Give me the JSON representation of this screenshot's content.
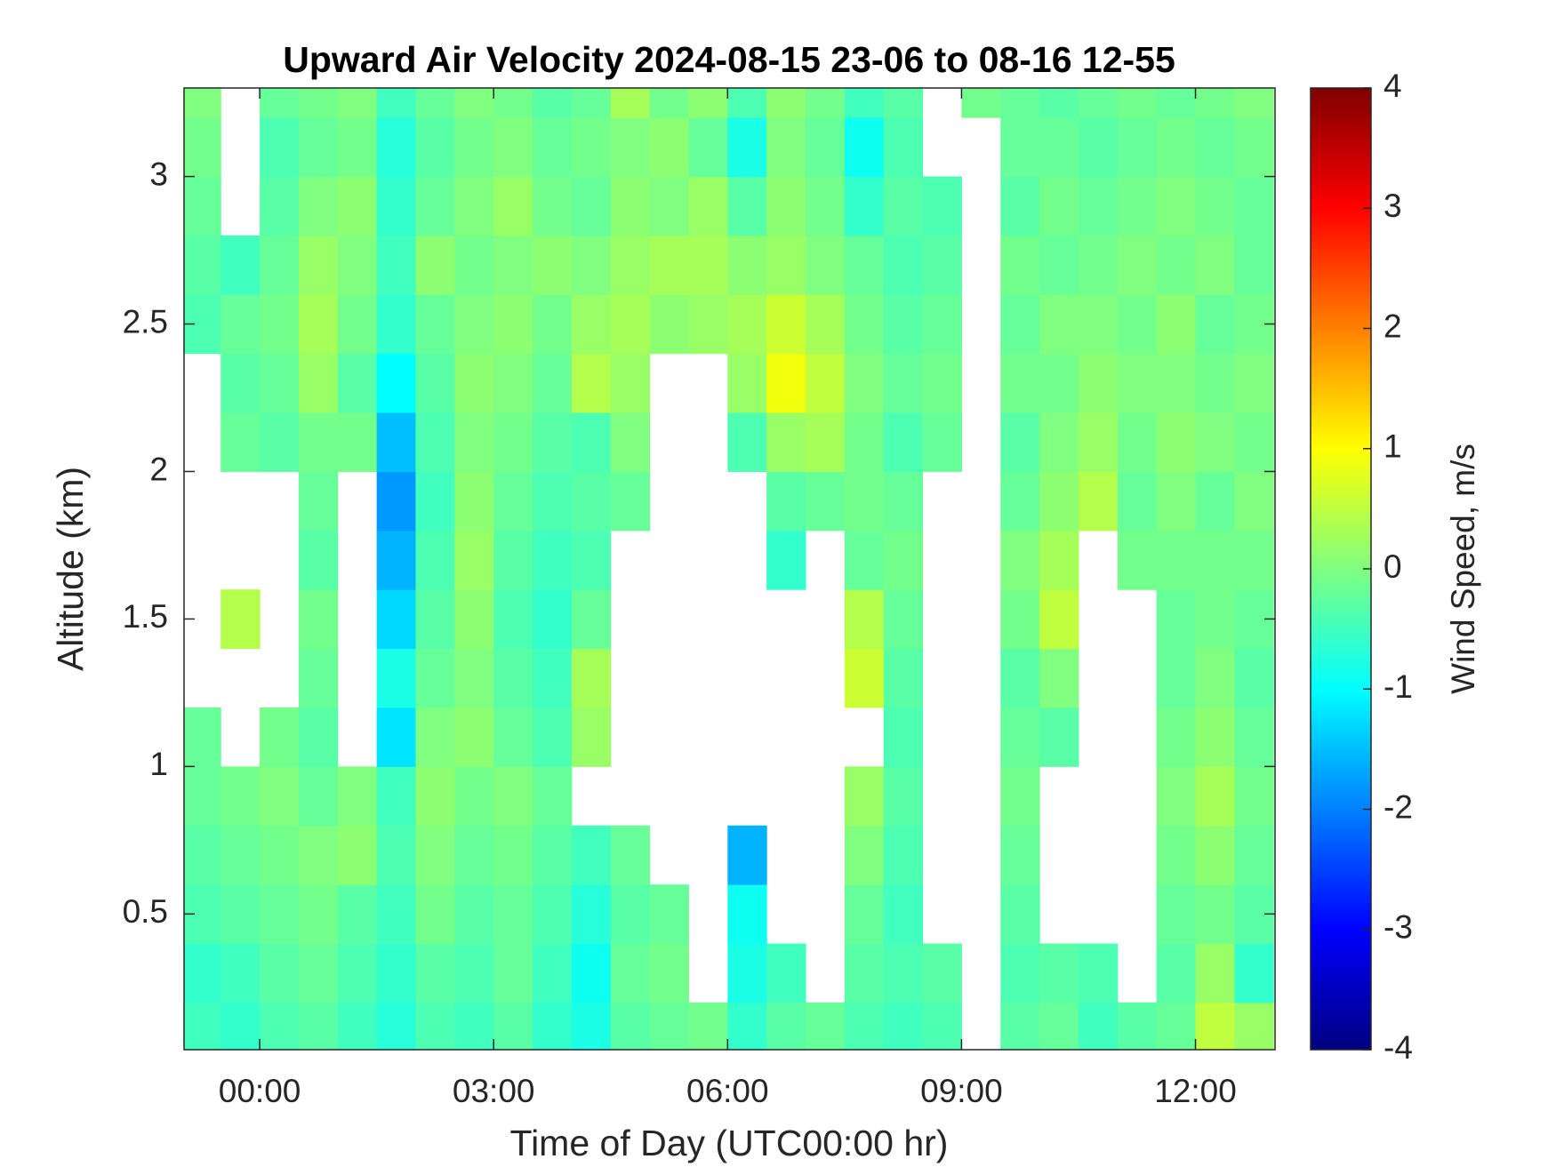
{
  "chart_data": {
    "type": "heatmap",
    "title": "Upward Air Velocity 2024-08-15 23-06 to 08-16 12-55",
    "xlabel": "Time of Day (UTC00:00 hr)",
    "ylabel": "Altitude (km)",
    "colorbar_label": "Wind Speed, m/s",
    "colormap": "jet",
    "xlim": [
      -0.97,
      13.02
    ],
    "ylim": [
      0.04,
      3.3
    ],
    "clim": [
      -4,
      4
    ],
    "xticks": [
      {
        "value": 0,
        "label": "00:00"
      },
      {
        "value": 3,
        "label": "03:00"
      },
      {
        "value": 6,
        "label": "06:00"
      },
      {
        "value": 9,
        "label": "09:00"
      },
      {
        "value": 12,
        "label": "12:00"
      }
    ],
    "yticks": [
      0.5,
      1,
      1.5,
      2,
      2.5,
      3
    ],
    "cticks": [
      -4,
      -3,
      -2,
      -1,
      0,
      1,
      2,
      3,
      4
    ],
    "x": [
      -0.75,
      -0.25,
      0.25,
      0.75,
      1.25,
      1.75,
      2.25,
      2.75,
      3.25,
      3.75,
      4.25,
      4.75,
      5.25,
      5.75,
      6.25,
      6.75,
      7.25,
      7.75,
      8.25,
      8.75,
      9.25,
      9.75,
      10.25,
      10.75,
      11.25,
      11.75,
      12.25,
      12.75
    ],
    "y": [
      0.1,
      0.3,
      0.5,
      0.7,
      0.9,
      1.1,
      1.3,
      1.5,
      1.7,
      1.9,
      2.1,
      2.3,
      2.5,
      2.7,
      2.9,
      3.1,
      3.3
    ],
    "z": [
      [
        -0.5,
        -0.6,
        -0.4,
        -0.3,
        -0.5,
        -0.7,
        -0.4,
        -0.5,
        -0.3,
        -0.6,
        -0.8,
        -0.3,
        -0.2,
        -0.1,
        -0.6,
        -0.3,
        -0.2,
        -0.4,
        -0.5,
        -0.4,
        null,
        -0.3,
        -0.2,
        -0.5,
        -0.3,
        -0.2,
        0.5,
        0.2
      ],
      [
        -0.6,
        -0.5,
        -0.3,
        -0.2,
        -0.4,
        -0.6,
        -0.3,
        -0.4,
        -0.2,
        -0.5,
        -0.9,
        -0.2,
        -0.1,
        null,
        -0.8,
        -0.5,
        null,
        -0.3,
        -0.4,
        -0.3,
        null,
        -0.4,
        -0.3,
        -0.4,
        null,
        -0.3,
        0.2,
        -0.6
      ],
      [
        -0.4,
        -0.3,
        -0.2,
        -0.1,
        -0.3,
        -0.5,
        -0.1,
        -0.3,
        -0.2,
        -0.4,
        -0.7,
        -0.3,
        -0.2,
        null,
        -0.9,
        null,
        null,
        -0.2,
        -0.5,
        null,
        null,
        -0.3,
        null,
        null,
        null,
        -0.2,
        -0.1,
        -0.3
      ],
      [
        -0.3,
        -0.2,
        -0.1,
        0.0,
        0.1,
        -0.4,
        0.0,
        -0.2,
        -0.1,
        -0.3,
        -0.5,
        -0.2,
        null,
        null,
        -1.6,
        null,
        null,
        0.0,
        -0.4,
        null,
        null,
        -0.2,
        null,
        null,
        null,
        -0.1,
        0.1,
        -0.2
      ],
      [
        -0.2,
        -0.1,
        0.0,
        -0.2,
        0.0,
        -0.5,
        0.1,
        -0.1,
        0.0,
        -0.2,
        null,
        null,
        null,
        null,
        null,
        null,
        null,
        0.2,
        -0.3,
        null,
        null,
        -0.1,
        null,
        null,
        null,
        0.0,
        0.3,
        -0.1
      ],
      [
        -0.2,
        null,
        -0.1,
        -0.3,
        null,
        -1.2,
        0.0,
        0.1,
        -0.2,
        -0.4,
        0.2,
        null,
        null,
        null,
        null,
        null,
        null,
        null,
        -0.4,
        null,
        null,
        -0.2,
        -0.3,
        null,
        null,
        -0.1,
        0.1,
        -0.2
      ],
      [
        null,
        null,
        null,
        -0.2,
        null,
        -0.8,
        -0.2,
        0.0,
        -0.3,
        -0.5,
        0.3,
        null,
        null,
        null,
        null,
        null,
        null,
        0.6,
        -0.3,
        null,
        null,
        -0.3,
        0.0,
        null,
        null,
        -0.2,
        0.0,
        -0.3
      ],
      [
        null,
        0.4,
        null,
        -0.1,
        null,
        -1.3,
        -0.3,
        0.1,
        -0.4,
        -0.6,
        -0.2,
        null,
        null,
        null,
        null,
        null,
        null,
        0.4,
        -0.2,
        null,
        null,
        -0.1,
        0.5,
        null,
        null,
        -0.2,
        -0.1,
        -0.2
      ],
      [
        null,
        null,
        null,
        -0.3,
        null,
        -1.6,
        -0.4,
        0.2,
        -0.3,
        -0.5,
        -0.4,
        null,
        null,
        null,
        null,
        -0.6,
        null,
        -0.2,
        -0.1,
        null,
        null,
        0.0,
        0.3,
        null,
        -0.1,
        -0.1,
        -0.1,
        -0.1
      ],
      [
        null,
        null,
        null,
        -0.2,
        null,
        -1.8,
        -0.5,
        0.1,
        -0.2,
        -0.4,
        -0.3,
        -0.2,
        null,
        null,
        null,
        -0.3,
        -0.2,
        -0.1,
        -0.2,
        null,
        null,
        -0.2,
        0.1,
        0.4,
        -0.2,
        0.0,
        -0.2,
        0.0
      ],
      [
        null,
        -0.2,
        -0.3,
        -0.1,
        -0.1,
        -1.5,
        -0.4,
        0.0,
        -0.1,
        -0.3,
        -0.4,
        0.0,
        null,
        null,
        -0.4,
        0.2,
        0.3,
        -0.1,
        -0.4,
        -0.2,
        null,
        -0.3,
        0.0,
        0.2,
        -0.1,
        0.1,
        0.0,
        -0.1
      ],
      [
        null,
        -0.3,
        -0.2,
        0.2,
        -0.3,
        -1.0,
        -0.3,
        0.1,
        0.0,
        -0.2,
        0.4,
        0.2,
        null,
        null,
        0.2,
        0.9,
        0.5,
        0.0,
        -0.2,
        -0.1,
        null,
        -0.1,
        -0.1,
        0.1,
        0.0,
        0.0,
        -0.1,
        0.0
      ],
      [
        -0.4,
        -0.2,
        -0.1,
        0.3,
        -0.1,
        -0.6,
        -0.2,
        0.0,
        0.1,
        -0.1,
        0.2,
        0.3,
        0.1,
        0.2,
        0.3,
        0.6,
        0.3,
        -0.1,
        -0.3,
        -0.2,
        null,
        -0.2,
        0.0,
        0.0,
        -0.1,
        0.1,
        -0.2,
        -0.1
      ],
      [
        -0.3,
        -0.5,
        -0.2,
        0.2,
        0.0,
        -0.5,
        0.1,
        -0.1,
        0.0,
        0.1,
        0.0,
        0.2,
        0.3,
        0.3,
        0.1,
        0.2,
        0.0,
        -0.2,
        -0.4,
        -0.3,
        null,
        -0.1,
        -0.2,
        -0.1,
        0.0,
        -0.1,
        0.0,
        -0.2
      ],
      [
        -0.2,
        null,
        -0.3,
        0.0,
        0.1,
        -0.6,
        -0.2,
        0.0,
        0.2,
        -0.1,
        -0.2,
        0.1,
        0.0,
        0.2,
        -0.3,
        0.1,
        -0.1,
        -0.6,
        -0.3,
        -0.4,
        null,
        -0.3,
        -0.1,
        -0.2,
        -0.1,
        0.0,
        -0.1,
        -0.2
      ],
      [
        -0.1,
        null,
        -0.4,
        -0.2,
        -0.1,
        -0.7,
        -0.3,
        -0.1,
        0.0,
        -0.2,
        -0.1,
        0.0,
        0.1,
        -0.2,
        -0.8,
        0.0,
        -0.2,
        -0.9,
        -0.4,
        null,
        null,
        -0.2,
        -0.2,
        -0.3,
        -0.2,
        -0.1,
        -0.2,
        -0.1
      ],
      [
        0.0,
        null,
        -0.2,
        -0.1,
        0.0,
        -0.5,
        -0.2,
        0.0,
        -0.1,
        -0.3,
        -0.2,
        0.3,
        -0.1,
        0.1,
        -0.4,
        0.1,
        -0.1,
        -0.5,
        -0.3,
        null,
        -0.1,
        -0.2,
        -0.3,
        -0.2,
        -0.1,
        -0.2,
        -0.1,
        0.0
      ]
    ]
  }
}
